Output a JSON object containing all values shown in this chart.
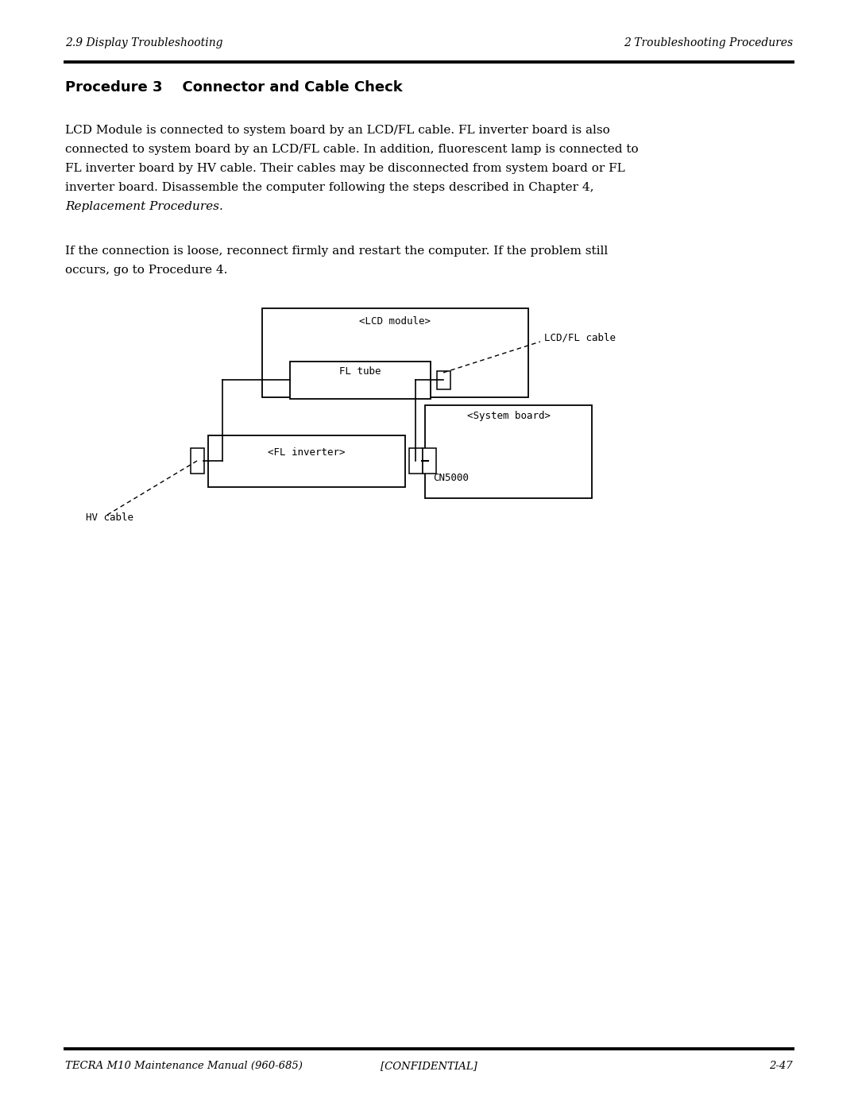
{
  "page_bg": "#ffffff",
  "header_left": "2.9 Display Troubleshooting",
  "header_right": "2 Troubleshooting Procedures",
  "footer_left": "TECRA M10 Maintenance Manual (960-685)",
  "footer_center": "[CONFIDENTIAL]",
  "footer_right": "2-47",
  "section_title_bold": "Procedure 3    Connector and Cable Check",
  "para1_lines": [
    "LCD Module is connected to system board by an LCD/FL cable. FL inverter board is also",
    "connected to system board by an LCD/FL cable. In addition, fluorescent lamp is connected to",
    "FL inverter board by HV cable. Their cables may be disconnected from system board or FL",
    "inverter board. Disassemble the computer following the steps described in Chapter 4,"
  ],
  "para1_italic": "Replacement Procedures.",
  "para2_lines": [
    "If the connection is loose, reconnect firmly and restart the computer. If the problem still",
    "occurs, go to Procedure 4."
  ],
  "text_color": "#000000",
  "line_color": "#000000"
}
